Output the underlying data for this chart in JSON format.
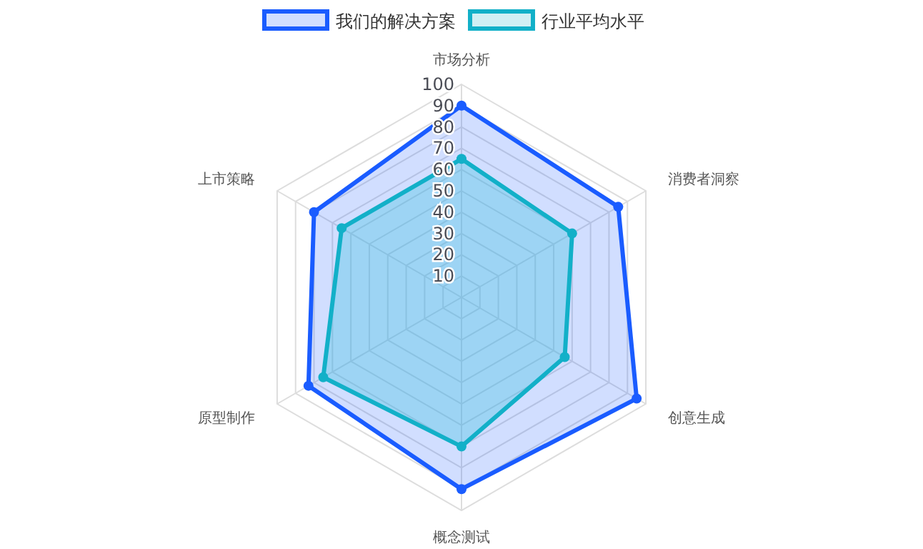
{
  "chart_data": {
    "type": "radar",
    "categories": [
      "市场分析",
      "消费者洞察",
      "创意生成",
      "概念测试",
      "原型制作",
      "上市策略"
    ],
    "series": [
      {
        "name": "我们的解决方案",
        "color": "#1a5cff",
        "values": [
          90,
          85,
          95,
          90,
          83,
          80
        ]
      },
      {
        "name": "行业平均水平",
        "color": "#12b0c8",
        "values": [
          65,
          60,
          56,
          70,
          75,
          65
        ]
      }
    ],
    "ylim": [
      0,
      100
    ],
    "yticks": [
      10,
      20,
      30,
      40,
      50,
      60,
      70,
      80,
      90,
      100
    ],
    "legend": "top",
    "grid": true,
    "marker": "circle",
    "line_style": "solid"
  }
}
